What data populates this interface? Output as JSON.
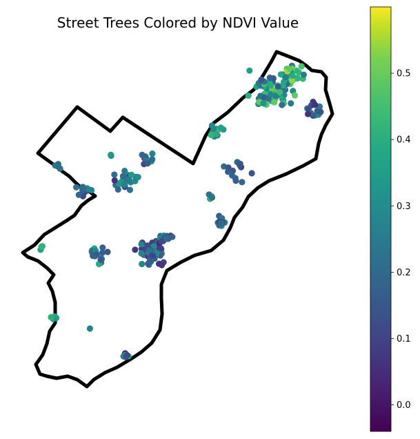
{
  "title": "Street Trees Colored by NDVI Value",
  "colorbar": {
    "colormap": "viridis",
    "range": [
      -0.04,
      0.6
    ],
    "ticks": [
      "0.0",
      "0.1",
      "0.2",
      "0.3",
      "0.4",
      "0.5"
    ],
    "tick_values": [
      0.0,
      0.1,
      0.2,
      0.3,
      0.4,
      0.5
    ]
  },
  "colors": {
    "boundary": "#000000",
    "background": "#ffffff"
  },
  "map_layers": {
    "boundary": "city outline (thick black line)",
    "points": "street tree locations colored by NDVI"
  }
}
